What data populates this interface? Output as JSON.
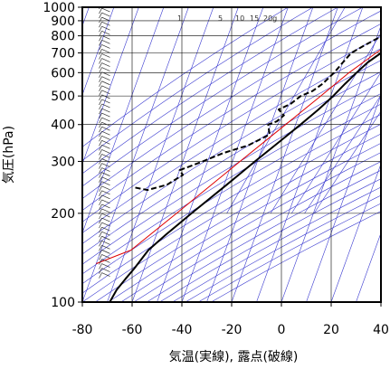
{
  "chart_data": {
    "type": "line",
    "title": "",
    "xlabel": "気温(実線), 露点(破線)",
    "ylabel": "気圧(hPa)",
    "xlim": [
      -80,
      40
    ],
    "ylim": [
      1000,
      100
    ],
    "y_scale": "log",
    "x_ticks": [
      "-80",
      "-60",
      "-40",
      "-20",
      "0",
      "20",
      "40"
    ],
    "y_ticks": [
      "100",
      "200",
      "300",
      "400",
      "500",
      "600",
      "700",
      "800",
      "900",
      "1000"
    ],
    "mixing_ratio_labels": [
      "1",
      "5",
      "10",
      "15",
      "20g"
    ],
    "colors": {
      "temperature": "#000000",
      "dewpoint": "#000000",
      "parcel": "#e00000",
      "guides": "#3a3ad0",
      "grid": "#000000"
    },
    "series": [
      {
        "key": "temperature",
        "style": "solid",
        "points": [
          [
            1000,
            29
          ],
          [
            975,
            25
          ],
          [
            950,
            23
          ],
          [
            925,
            21
          ],
          [
            900,
            19.5
          ],
          [
            875,
            18
          ],
          [
            850,
            15
          ],
          [
            800,
            12
          ],
          [
            750,
            8
          ],
          [
            700,
            4
          ],
          [
            650,
            0
          ],
          [
            600,
            -3
          ],
          [
            550,
            -6
          ],
          [
            500,
            -9
          ],
          [
            450,
            -13
          ],
          [
            400,
            -18
          ],
          [
            350,
            -24
          ],
          [
            300,
            -31
          ],
          [
            250,
            -39
          ],
          [
            200,
            -49
          ],
          [
            170,
            -56
          ],
          [
            150,
            -61
          ],
          [
            130,
            -64
          ],
          [
            120,
            -66
          ],
          [
            110,
            -68
          ],
          [
            100,
            -69
          ]
        ]
      },
      {
        "key": "dewpoint",
        "style": "dashed",
        "points": [
          [
            1000,
            22
          ],
          [
            975,
            20
          ],
          [
            950,
            16
          ],
          [
            930,
            12
          ],
          [
            920,
            16
          ],
          [
            900,
            10
          ],
          [
            880,
            14
          ],
          [
            850,
            8
          ],
          [
            800,
            2
          ],
          [
            750,
            -3
          ],
          [
            700,
            -8
          ],
          [
            650,
            -10
          ],
          [
            600,
            -12
          ],
          [
            550,
            -15
          ],
          [
            520,
            -18
          ],
          [
            500,
            -22
          ],
          [
            470,
            -25
          ],
          [
            450,
            -29
          ],
          [
            430,
            -26
          ],
          [
            410,
            -28
          ],
          [
            400,
            -31
          ],
          [
            370,
            -29
          ],
          [
            340,
            -36
          ],
          [
            320,
            -45
          ],
          [
            300,
            -52
          ],
          [
            280,
            -60
          ],
          [
            270,
            -58
          ],
          [
            250,
            -63
          ],
          [
            240,
            -70
          ],
          [
            245,
            -76
          ]
        ]
      },
      {
        "key": "parcel",
        "style": "solid",
        "points": [
          [
            1000,
            29
          ],
          [
            950,
            23
          ],
          [
            900,
            19
          ],
          [
            850,
            14
          ],
          [
            800,
            10
          ],
          [
            700,
            2
          ],
          [
            600,
            -6
          ],
          [
            500,
            -14
          ],
          [
            400,
            -24
          ],
          [
            300,
            -37
          ],
          [
            200,
            -55
          ],
          [
            150,
            -68
          ],
          [
            135,
            -80
          ]
        ]
      }
    ],
    "wind_barbs_x": -70
  }
}
